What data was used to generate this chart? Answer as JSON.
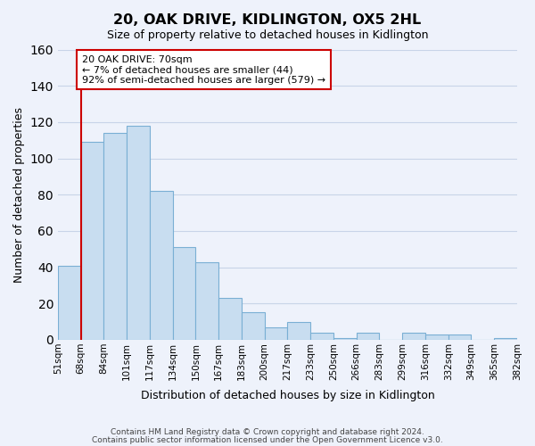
{
  "title": "20, OAK DRIVE, KIDLINGTON, OX5 2HL",
  "subtitle": "Size of property relative to detached houses in Kidlington",
  "xlabel": "Distribution of detached houses by size in Kidlington",
  "ylabel": "Number of detached properties",
  "bar_labels": [
    "51sqm",
    "68sqm",
    "84sqm",
    "101sqm",
    "117sqm",
    "134sqm",
    "150sqm",
    "167sqm",
    "183sqm",
    "200sqm",
    "217sqm",
    "233sqm",
    "250sqm",
    "266sqm",
    "283sqm",
    "299sqm",
    "316sqm",
    "332sqm",
    "349sqm",
    "365sqm",
    "382sqm"
  ],
  "bar_values": [
    41,
    109,
    114,
    118,
    82,
    51,
    43,
    23,
    15,
    7,
    10,
    4,
    1,
    4,
    0,
    4,
    3,
    3,
    0,
    1
  ],
  "bar_color": "#c8ddf0",
  "bar_edge_color": "#7aafd4",
  "grid_color": "#c8d4e8",
  "background_color": "#eef2fb",
  "vline_x": 1,
  "vline_color": "#cc0000",
  "annotation_title": "20 OAK DRIVE: 70sqm",
  "annotation_line1": "← 7% of detached houses are smaller (44)",
  "annotation_line2": "92% of semi-detached houses are larger (579) →",
  "annotation_box_color": "#ffffff",
  "annotation_box_edge": "#cc0000",
  "ylim": [
    0,
    160
  ],
  "yticks": [
    0,
    20,
    40,
    60,
    80,
    100,
    120,
    140,
    160
  ],
  "footer1": "Contains HM Land Registry data © Crown copyright and database right 2024.",
  "footer2": "Contains public sector information licensed under the Open Government Licence v3.0."
}
